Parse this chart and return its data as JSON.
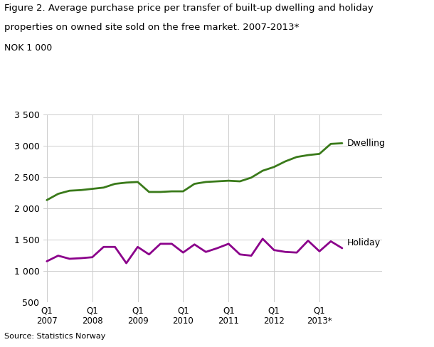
{
  "title_line1": "Figure 2. Average purchase price per transfer of built-up dwelling and holiday",
  "title_line2": "properties on owned site sold on the free market. 2007-2013*",
  "ylabel": "NOK 1 000",
  "source": "Source: Statistics Norway",
  "dwelling_label": "Dwelling",
  "holiday_label": "Holiday",
  "dwelling_color": "#3a7a1a",
  "holiday_color": "#8b008b",
  "ylim": [
    500,
    3500
  ],
  "yticks": [
    500,
    1000,
    1500,
    2000,
    2500,
    3000,
    3500
  ],
  "ytick_labels": [
    "500",
    "1 000",
    "1 500",
    "2 000",
    "2 500",
    "3 000",
    "3 500"
  ],
  "x_tick_labels": [
    "Q1\n2007",
    "Q1\n2008",
    "Q1\n2009",
    "Q1\n2010",
    "Q1\n2011",
    "Q1\n2012",
    "Q1\n2013*"
  ],
  "x_tick_positions": [
    0,
    4,
    8,
    12,
    16,
    20,
    24
  ],
  "dwelling_values": [
    2130,
    2230,
    2280,
    2290,
    2310,
    2330,
    2390,
    2410,
    2420,
    2260,
    2260,
    2270,
    2270,
    2390,
    2420,
    2430,
    2440,
    2430,
    2490,
    2600,
    2660,
    2750,
    2820,
    2850,
    2870,
    3030,
    3040
  ],
  "holiday_values": [
    1150,
    1240,
    1190,
    1200,
    1215,
    1380,
    1380,
    1120,
    1380,
    1260,
    1430,
    1430,
    1290,
    1420,
    1300,
    1360,
    1430,
    1260,
    1240,
    1510,
    1330,
    1300,
    1290,
    1480,
    1310,
    1470,
    1360
  ],
  "background_color": "#ffffff",
  "grid_color": "#cccccc",
  "line_width": 2.0,
  "title_fontsize": 9.5,
  "tick_fontsize": 9,
  "source_fontsize": 8,
  "label_fontsize": 9
}
